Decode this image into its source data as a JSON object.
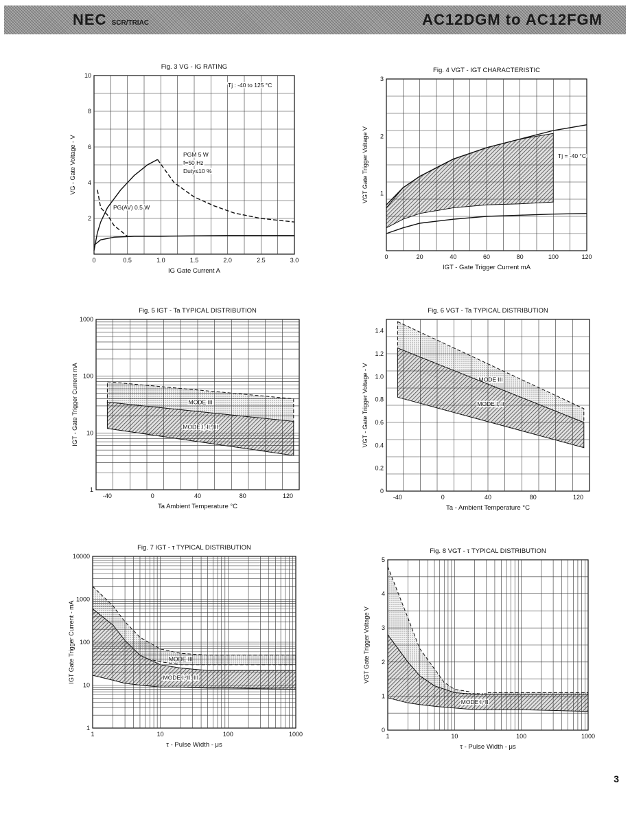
{
  "header": {
    "brand": "NEC",
    "brand_sub": "SCR/TRIAC",
    "part": "AC12DGM to AC12FGM"
  },
  "page_number": "3",
  "chart_data": [
    {
      "id": "fig3",
      "type": "line",
      "title": "Fig. 3 VG - IG RATING",
      "xlabel": "IG   Gate Current  A",
      "ylabel": "VG - Gate Voltage - V",
      "xlim": [
        0,
        3.0
      ],
      "ylim": [
        0,
        10
      ],
      "xticks": [
        "0",
        "0.5",
        "1.0",
        "1.5",
        "2.0",
        "2.5",
        "3.0"
      ],
      "yticks": [
        "2",
        "4",
        "6",
        "8",
        "10"
      ],
      "annotations": [
        "Tj : -40 to  125 °C",
        "PGM  5  W",
        "f=50 Hz",
        "Duty≤10 %",
        "PG(AV)  0.5  W"
      ],
      "series": [
        {
          "x": [
            0,
            0.05,
            0.1,
            0.2,
            0.4,
            0.6,
            0.8,
            0.95
          ],
          "y": [
            0.2,
            1.2,
            1.8,
            2.6,
            3.6,
            4.4,
            5.0,
            5.3
          ],
          "dash": false
        },
        {
          "x": [
            0.95,
            1.2,
            1.5,
            1.8,
            2.1,
            2.5,
            3.0
          ],
          "y": [
            5.3,
            4.0,
            3.2,
            2.7,
            2.3,
            2.0,
            1.8
          ],
          "dash": true
        },
        {
          "x": [
            0.05,
            0.1,
            0.2,
            0.3,
            0.4,
            0.5
          ],
          "y": [
            3.6,
            2.6,
            2.2,
            1.6,
            1.3,
            1.0
          ],
          "dash": true
        },
        {
          "x": [
            0,
            0.1,
            0.3,
            0.6,
            1.0,
            2.0,
            3.0
          ],
          "y": [
            0.5,
            0.8,
            0.95,
            1.0,
            1.0,
            1.05,
            1.05
          ],
          "dash": false
        }
      ]
    },
    {
      "id": "fig4",
      "type": "area",
      "title": "Fig. 4 VGT - IGT CHARACTERISTIC",
      "xlabel": "IGT - Gate Trigger Current  mA",
      "ylabel": "VGT   Gate Trigger Voltage   V",
      "xlim": [
        0,
        120
      ],
      "ylim": [
        0,
        3
      ],
      "xticks": [
        "0",
        "20",
        "40",
        "60",
        "80",
        "100",
        "120"
      ],
      "yticks": [
        "1",
        "2",
        "3"
      ],
      "annotations": [
        "Tj = -40 °C"
      ],
      "series": [
        {
          "x": [
            0,
            10,
            20,
            40,
            60,
            80,
            100,
            120
          ],
          "y": [
            0.8,
            1.1,
            1.3,
            1.6,
            1.8,
            1.95,
            2.1,
            2.2
          ],
          "dash": false
        },
        {
          "x": [
            0,
            10,
            20,
            40,
            60,
            80,
            100,
            120
          ],
          "y": [
            0.3,
            0.4,
            0.48,
            0.55,
            0.6,
            0.62,
            0.64,
            0.65
          ],
          "dash": false
        }
      ],
      "band": {
        "x": [
          0,
          10,
          20,
          40,
          60,
          80,
          100
        ],
        "upper": [
          0.75,
          1.1,
          1.3,
          1.6,
          1.8,
          1.95,
          2.05
        ],
        "lower": [
          0.4,
          0.55,
          0.65,
          0.75,
          0.8,
          0.82,
          0.85
        ]
      }
    },
    {
      "id": "fig5",
      "type": "area",
      "title": "Fig. 5 IGT - Ta TYPICAL DISTRIBUTION",
      "xlabel": "Ta   Ambient Temperature  °C",
      "ylabel": "IGT - Gate Trigger Current  mA",
      "xlim": [
        -50,
        130
      ],
      "ylim": [
        1,
        1000
      ],
      "yscale": "log",
      "xticks": [
        "-40",
        "0",
        "40",
        "80",
        "120"
      ],
      "yticks": [
        "1",
        "10",
        "100",
        "1000"
      ],
      "bands": [
        {
          "label": "MODE III",
          "x": [
            -40,
            125
          ],
          "upper": [
            80,
            40
          ],
          "lower": [
            30,
            15
          ],
          "dash": true
        },
        {
          "label": "MODE I, II, III",
          "x": [
            -40,
            125
          ],
          "upper": [
            35,
            16
          ],
          "lower": [
            12,
            4
          ],
          "dash": false
        }
      ]
    },
    {
      "id": "fig6",
      "type": "area",
      "title": "Fig. 6 VGT - Ta TYPICAL DISTRIBUTION",
      "xlabel": "Ta - Ambient Temperature  °C",
      "ylabel": "VGT - Gate Trigger Voltage - V",
      "xlim": [
        -50,
        130
      ],
      "ylim": [
        0,
        1.5
      ],
      "xticks": [
        "-40",
        "0",
        "40",
        "80",
        "120"
      ],
      "yticks": [
        "0",
        "0.2",
        "0.4",
        "0.6",
        "0.8",
        "1.0",
        "1.2",
        "1.4"
      ],
      "bands": [
        {
          "label": "MODE III",
          "x": [
            -40,
            125
          ],
          "upper": [
            1.48,
            0.72
          ],
          "lower": [
            1.1,
            0.6
          ],
          "dash": true
        },
        {
          "label": "MODE I, II",
          "x": [
            -40,
            125
          ],
          "upper": [
            1.25,
            0.6
          ],
          "lower": [
            0.82,
            0.38
          ],
          "dash": false
        }
      ]
    },
    {
      "id": "fig7",
      "type": "area",
      "title": "Fig. 7 IGT - τ TYPICAL DISTRIBUTION",
      "xlabel": "τ - Pulse Width - μs",
      "ylabel": "IGT   Gate Trigger Current - mA",
      "xlim": [
        1,
        1000
      ],
      "ylim": [
        1,
        10000
      ],
      "xscale": "log",
      "yscale": "log",
      "xticks": [
        "1",
        "10",
        "100",
        "1000"
      ],
      "yticks": [
        "1",
        "10",
        "100",
        "1000",
        "10000"
      ],
      "bands": [
        {
          "label": "MODE III",
          "x": [
            1,
            2,
            3,
            5,
            10,
            20,
            50,
            100,
            1000
          ],
          "upper": [
            2000,
            700,
            300,
            130,
            70,
            55,
            50,
            50,
            50
          ],
          "lower": [
            500,
            150,
            80,
            45,
            35,
            30,
            30,
            30,
            30
          ],
          "dash": true
        },
        {
          "label": "MODE I, II, III",
          "x": [
            1,
            2,
            3,
            5,
            10,
            20,
            50,
            100,
            1000
          ],
          "upper": [
            600,
            250,
            110,
            50,
            30,
            25,
            22,
            22,
            22
          ],
          "lower": [
            17,
            13,
            11,
            10,
            9,
            9,
            8.5,
            8.5,
            8
          ]
        }
      ]
    },
    {
      "id": "fig8",
      "type": "area",
      "title": "Fig. 8 VGT - τ TYPICAL DISTRIBUTION",
      "xlabel": "τ - Pulse Width - μs",
      "ylabel": "VGT   Gate Trigger Voltage  V",
      "xlim": [
        1,
        1000
      ],
      "ylim": [
        0,
        5
      ],
      "xscale": "log",
      "xticks": [
        "1",
        "10",
        "100",
        "1000"
      ],
      "yticks": [
        "0",
        "1",
        "2",
        "3",
        "4",
        "5"
      ],
      "bands": [
        {
          "label": "MODE III",
          "x": [
            1,
            2,
            3,
            5,
            7,
            10,
            20,
            50,
            100,
            1000
          ],
          "upper": [
            4.8,
            3.3,
            2.4,
            1.8,
            1.4,
            1.2,
            1.1,
            1.1,
            1.1,
            1.1
          ],
          "lower": [
            2.8,
            2.0,
            1.6,
            1.3,
            1.1,
            1.0,
            0.95,
            0.95,
            0.95,
            0.95
          ],
          "dash": true
        },
        {
          "label": "MODE I, II",
          "x": [
            1,
            2,
            3,
            5,
            10,
            20,
            50,
            100,
            1000
          ],
          "upper": [
            2.8,
            2.0,
            1.6,
            1.3,
            1.1,
            1.05,
            1.05,
            1.05,
            1.05
          ],
          "lower": [
            0.95,
            0.8,
            0.75,
            0.7,
            0.65,
            0.6,
            0.6,
            0.6,
            0.55
          ]
        }
      ]
    }
  ]
}
